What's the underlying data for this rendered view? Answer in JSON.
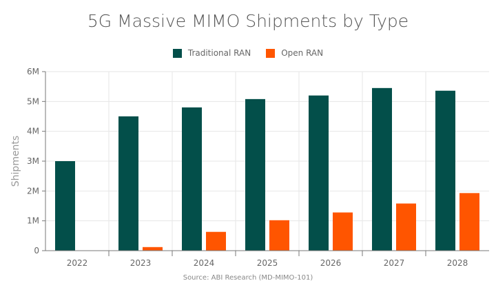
{
  "chart_data": {
    "type": "bar",
    "title": "5G Massive MIMO Shipments by Type",
    "ylabel": "Shipments",
    "xlabel": "",
    "source": "Source: ABI Research (MD-MIMO-101)",
    "categories": [
      "2022",
      "2023",
      "2024",
      "2025",
      "2026",
      "2027",
      "2028"
    ],
    "ylim": [
      0,
      6000000
    ],
    "yticks": [
      0,
      1000000,
      2000000,
      3000000,
      4000000,
      5000000,
      6000000
    ],
    "ytick_labels": [
      "0",
      "1M",
      "2M",
      "3M",
      "4M",
      "5M",
      "6M"
    ],
    "grid": true,
    "legend_position": "top",
    "series": [
      {
        "name": "Traditional RAN",
        "color": "#034f4a",
        "values": [
          3000000,
          4500000,
          4800000,
          5080000,
          5200000,
          5450000,
          5360000
        ]
      },
      {
        "name": "Open RAN",
        "color": "#ff5500",
        "values": [
          0,
          120000,
          630000,
          1020000,
          1280000,
          1580000,
          1930000
        ]
      }
    ]
  }
}
